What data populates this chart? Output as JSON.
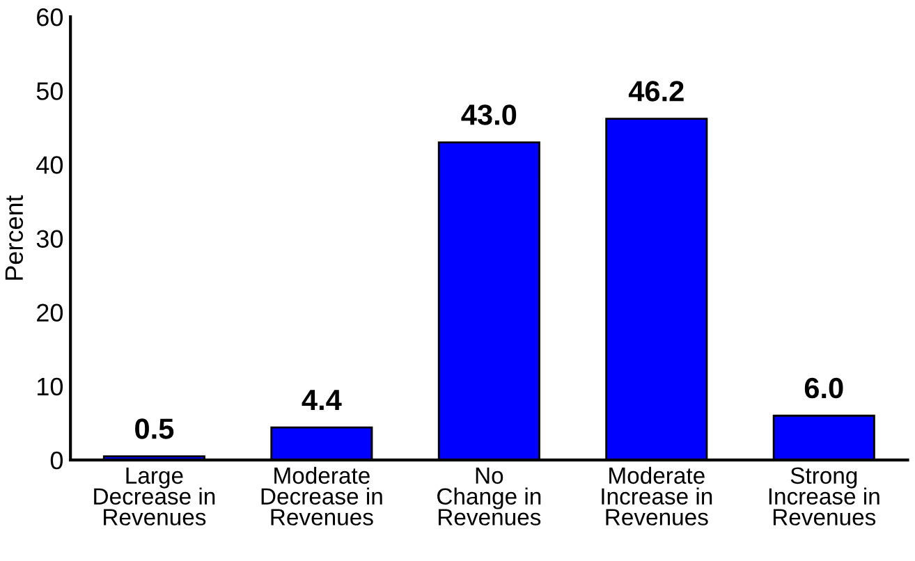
{
  "chart_data": {
    "type": "bar",
    "categories": [
      "Large\nDecrease in\nRevenues",
      "Moderate\nDecrease in\nRevenues",
      "No\nChange in\nRevenues",
      "Moderate\nIncrease in\nRevenues",
      "Strong\nIncrease in\nRevenues"
    ],
    "values": [
      0.5,
      4.4,
      43.0,
      46.2,
      6.0
    ],
    "value_labels": [
      "0.5",
      "4.4",
      "43.0",
      "46.2",
      "6.0"
    ],
    "color": "#0000ff",
    "ylabel": "Percent",
    "ylim": [
      0,
      60
    ],
    "yticks": [
      0,
      10,
      20,
      30,
      40,
      50,
      60
    ],
    "grid": false
  }
}
